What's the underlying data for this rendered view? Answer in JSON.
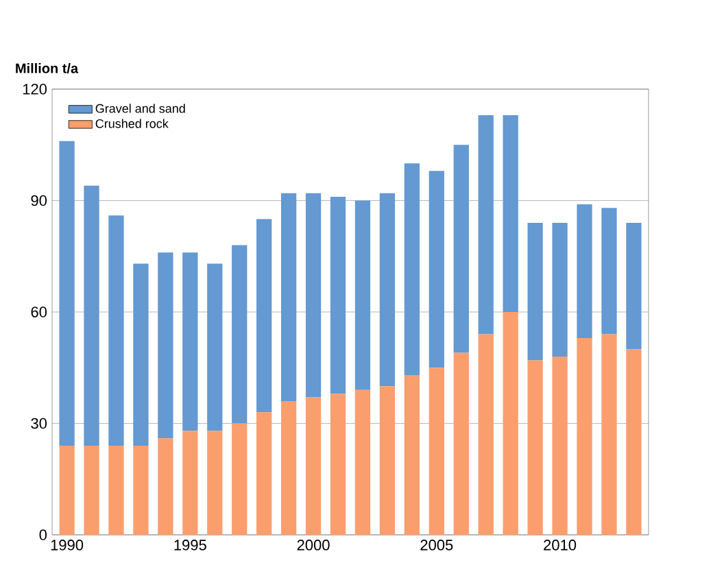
{
  "chart_data": {
    "type": "bar",
    "stacked": true,
    "ylabel": "Million t/a",
    "categories": [
      "1990",
      null,
      null,
      null,
      null,
      "1995",
      null,
      null,
      null,
      null,
      "2000",
      null,
      null,
      null,
      null,
      "2005",
      null,
      null,
      null,
      null,
      "2010",
      null,
      null,
      null
    ],
    "series": [
      {
        "name": "Crushed rock",
        "color": "#fa9e6e",
        "values": [
          24,
          24,
          24,
          24,
          26,
          28,
          28,
          30,
          33,
          36,
          37,
          38,
          39,
          40,
          43,
          45,
          49,
          54,
          60,
          47,
          48,
          53,
          54,
          50
        ]
      },
      {
        "name": "Gravel and sand",
        "color": "#6499d2",
        "values": [
          82,
          70,
          62,
          49,
          50,
          48,
          45,
          48,
          52,
          56,
          55,
          53,
          51,
          52,
          57,
          53,
          56,
          59,
          53,
          37,
          36,
          36,
          34,
          34
        ]
      }
    ],
    "ylim": [
      0,
      120
    ],
    "yticks": [
      0,
      30,
      60,
      90,
      120
    ],
    "grid": "y",
    "legend": "top left"
  }
}
